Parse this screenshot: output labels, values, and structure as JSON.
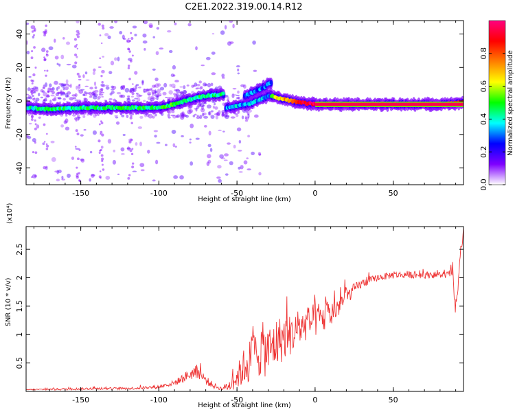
{
  "title": "C2E1.2022.319.00.14.R12",
  "chart_data": [
    {
      "type": "heatmap",
      "xlabel": "Height of straight line (km)",
      "ylabel": "Frequency (Hz)",
      "xlim": [
        -185,
        95
      ],
      "ylim": [
        -50,
        48
      ],
      "x_ticks": [
        -150,
        -100,
        -50,
        0,
        50
      ],
      "y_ticks": [
        -40,
        -20,
        0,
        20,
        40
      ],
      "colorbar": {
        "label": "Normalized spectral amplitude",
        "range": [
          0.0,
          1.0
        ],
        "ticks": [
          0.0,
          0.2,
          0.4,
          0.6,
          0.8
        ],
        "tick_labels": [
          "0.0",
          "0.2",
          "0.4",
          "0.6",
          "0.8"
        ],
        "colors": [
          "#ffffff",
          "#7f00ff",
          "#0000ff",
          "#00ffff",
          "#00ff00",
          "#ffff00",
          "#ff7f00",
          "#ff0000",
          "#ff0080"
        ]
      },
      "ridges": [
        {
          "points": [
            [
              -185,
              -4
            ],
            [
              -170,
              -5
            ],
            [
              -150,
              -4
            ],
            [
              -130,
              -4
            ],
            [
              -110,
              -4
            ],
            [
              -100,
              -4
            ],
            [
              -90,
              -2
            ],
            [
              -80,
              1
            ],
            [
              -70,
              3
            ],
            [
              -60,
              4
            ],
            [
              -58,
              4
            ]
          ],
          "amplitude": [
            0.4,
            0.45,
            0.45,
            0.45,
            0.45,
            0.45,
            0.5,
            0.45,
            0.45,
            0.45,
            0.45
          ]
        },
        {
          "points": [
            [
              -57,
              -4
            ],
            [
              -50,
              -3
            ],
            [
              -40,
              -1
            ],
            [
              -30,
              3
            ],
            [
              -28,
              4
            ]
          ],
          "amplitude": [
            0.3,
            0.35,
            0.35,
            0.35,
            0.3
          ]
        },
        {
          "points": [
            [
              -45,
              3
            ],
            [
              -35,
              7
            ],
            [
              -28,
              11
            ]
          ],
          "amplitude": [
            0.3,
            0.3,
            0.3
          ]
        },
        {
          "points": [
            [
              -28,
              3
            ],
            [
              -20,
              1
            ],
            [
              -10,
              -1
            ],
            [
              0,
              -2
            ],
            [
              10,
              -2
            ],
            [
              50,
              -2
            ],
            [
              80,
              -2
            ],
            [
              95,
              -1
            ]
          ],
          "amplitude": [
            0.55,
            0.7,
            0.9,
            0.95,
            0.95,
            0.95,
            0.95,
            0.9
          ]
        }
      ]
    },
    {
      "type": "line",
      "xlabel": "Height of straight line (km)",
      "ylabel": "SNR (10 * v/v)",
      "y_multiplier": "(x10⁴)",
      "xlim": [
        -185,
        95
      ],
      "ylim": [
        0,
        2.9
      ],
      "x_ticks": [
        -150,
        -100,
        -50,
        0,
        50
      ],
      "y_ticks": [
        0.5,
        1.0,
        1.5,
        2.0,
        2.5
      ],
      "series": [
        {
          "color": "#ee3333",
          "x": [
            -185,
            -160,
            -140,
            -120,
            -100,
            -90,
            -80,
            -75,
            -70,
            -65,
            -60,
            -55,
            -50,
            -45,
            -40,
            -35,
            -30,
            -25,
            -20,
            -15,
            -10,
            -5,
            0,
            5,
            10,
            15,
            20,
            25,
            30,
            40,
            50,
            60,
            70,
            80,
            85,
            88,
            90,
            92,
            95
          ],
          "y": [
            0.03,
            0.04,
            0.05,
            0.05,
            0.08,
            0.15,
            0.3,
            0.35,
            0.2,
            0.1,
            0.05,
            0.1,
            0.25,
            0.45,
            0.6,
            0.75,
            0.7,
            0.85,
            0.95,
            1.0,
            1.1,
            1.2,
            1.25,
            1.3,
            1.35,
            1.5,
            1.65,
            1.8,
            1.9,
            2.0,
            2.05,
            2.05,
            2.05,
            2.05,
            2.05,
            2.1,
            1.3,
            2.1,
            2.8
          ],
          "noise": [
            0.01,
            0.02,
            0.02,
            0.02,
            0.03,
            0.05,
            0.1,
            0.12,
            0.08,
            0.05,
            0.03,
            0.1,
            0.2,
            0.35,
            0.45,
            0.5,
            0.45,
            0.45,
            0.4,
            0.35,
            0.3,
            0.3,
            0.3,
            0.3,
            0.25,
            0.2,
            0.15,
            0.1,
            0.08,
            0.06,
            0.06,
            0.06,
            0.06,
            0.06,
            0.06,
            0.08,
            0.3,
            0.1,
            0.1
          ]
        }
      ]
    }
  ]
}
